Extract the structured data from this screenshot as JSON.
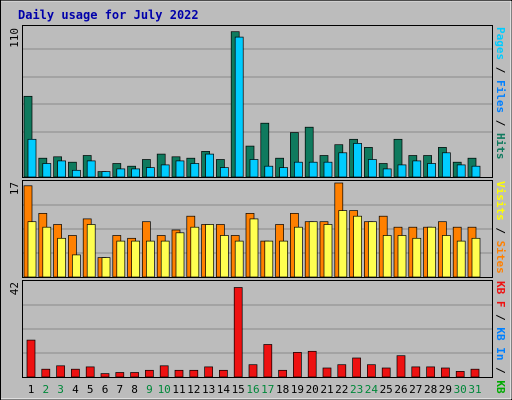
{
  "chart_data": {
    "type": "bar",
    "title": "Daily usage for July 2022",
    "categories": [
      "1",
      "2",
      "3",
      "4",
      "5",
      "6",
      "7",
      "8",
      "9",
      "10",
      "11",
      "12",
      "13",
      "14",
      "15",
      "16",
      "17",
      "18",
      "19",
      "20",
      "21",
      "22",
      "23",
      "24",
      "25",
      "26",
      "27",
      "28",
      "29",
      "30",
      "31"
    ],
    "weekend_days": [
      "2",
      "3",
      "9",
      "10",
      "16",
      "17",
      "23",
      "24",
      "30",
      "31"
    ],
    "panels": [
      {
        "ymax_label": "110",
        "ylim": [
          0,
          110
        ],
        "legend": [
          "Pages",
          "Files",
          "Hits"
        ],
        "series": [
          {
            "name": "Hits",
            "color": "#0f7a5e",
            "values": [
              60,
              14,
              15,
              11,
              16,
              4,
              10,
              8,
              13,
              17,
              15,
              14,
              19,
              13,
              108,
              23,
              40,
              14,
              33,
              37,
              16,
              24,
              28,
              22,
              10,
              28,
              16,
              16,
              22,
              11,
              14
            ]
          },
          {
            "name": "Files",
            "color": "#00ccff",
            "values": [
              28,
              10,
              12,
              5,
              12,
              4,
              6,
              6,
              7,
              9,
              12,
              10,
              17,
              7,
              104,
              13,
              8,
              7,
              11,
              11,
              11,
              18,
              25,
              13,
              6,
              9,
              12,
              10,
              18,
              9,
              8
            ]
          }
        ]
      },
      {
        "ymax_label": "17",
        "ylim": [
          0,
          17
        ],
        "legend": [
          "Visits",
          "Sites"
        ],
        "series": [
          {
            "name": "Sites",
            "color": "#ff8000",
            "values": [
              16.5,
              11.5,
              9.5,
              7.5,
              10.5,
              3.5,
              7.5,
              7,
              10,
              7.5,
              8.5,
              11,
              9.5,
              9.5,
              7.5,
              11.5,
              6.5,
              9.5,
              11.5,
              10,
              10,
              17,
              12,
              10,
              11,
              9,
              9,
              9,
              10,
              9,
              9
            ]
          },
          {
            "name": "Visits",
            "color": "#ffff50",
            "values": [
              10,
              9,
              7,
              4,
              9.5,
              3.5,
              6.5,
              6.5,
              6.5,
              6.5,
              8,
              9,
              9.5,
              7.5,
              6.5,
              10.5,
              6.5,
              6.5,
              9,
              10,
              9.5,
              12,
              11,
              10,
              7.5,
              7.5,
              7,
              9,
              7.5,
              6.5,
              7
            ]
          }
        ]
      },
      {
        "ymax_label": "42",
        "ylim": [
          0,
          42
        ],
        "legend": [
          "KB F",
          "KB In",
          "KB Out"
        ],
        "series": [
          {
            "name": "KB F",
            "color": "#ee1111",
            "values": [
              16.5,
              3.5,
              5,
              3.5,
              4.5,
              1.5,
              2,
              2,
              3,
              5,
              3,
              3,
              4.5,
              3,
              40,
              5.5,
              14.5,
              3,
              11,
              11.5,
              4,
              5.5,
              8.5,
              5.5,
              4,
              9.5,
              4.5,
              4.5,
              4,
              2.5,
              3.5
            ]
          }
        ]
      }
    ]
  },
  "colors": {
    "background": "#bcbcbc",
    "title": "#0000aa",
    "weekday_label": "#000000",
    "weekend_label": "#00883a",
    "legend_separator": "#000000",
    "legend_colors": {
      "Pages": "#00ccff",
      "Files": "#0080ff",
      "Hits": "#0f7a5e",
      "Visits": "#ffff00",
      "Sites": "#ff8000",
      "KB F": "#ee1111",
      "KB In": "#0080ff",
      "KB Out": "#00aa00"
    }
  }
}
